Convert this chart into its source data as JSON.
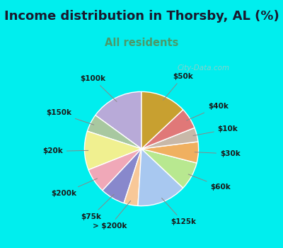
{
  "title": "Income distribution in Thorsby, AL (%)",
  "subtitle": "All residents",
  "title_fontsize": 13,
  "subtitle_fontsize": 10.5,
  "title_color": "#1a1a2e",
  "subtitle_color": "#4a9a6a",
  "bg_color": "#00EEEE",
  "panel_color": "#e0f0e8",
  "watermark": "City-Data.com",
  "labels": [
    "$100k",
    "$150k",
    "$20k",
    "$200k",
    "$75k",
    "> $200k",
    "$125k",
    "$60k",
    "$30k",
    "$10k",
    "$40k",
    "$50k"
  ],
  "sizes": [
    15,
    5,
    11,
    7,
    7,
    4,
    14,
    8,
    6,
    4,
    6,
    13
  ],
  "colors": [
    "#b8aad8",
    "#a8c8a0",
    "#f0f090",
    "#f0a8b8",
    "#8888cc",
    "#f8c898",
    "#a8c8f0",
    "#b8e890",
    "#f0b060",
    "#c8b8a8",
    "#e07878",
    "#c8a030"
  ],
  "startangle": 90,
  "label_fontsize": 7.5,
  "wedge_linewidth": 1.0,
  "wedge_edgecolor": "white"
}
